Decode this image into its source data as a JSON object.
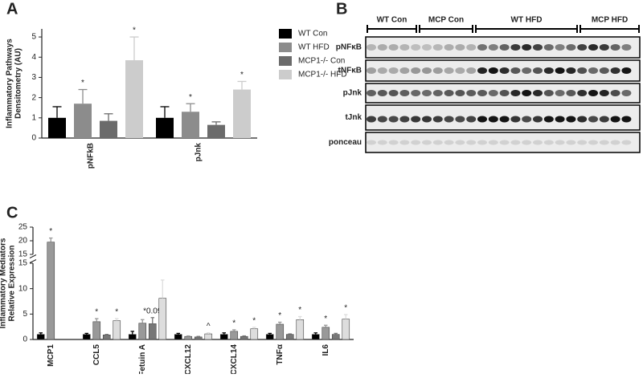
{
  "chart_data": [
    {
      "type": "bar",
      "panel": "A",
      "ylabel": [
        "Inflammatory Pathways",
        "Densitometry (AU)"
      ],
      "categories": [
        "pNFkB",
        "pJnk"
      ],
      "series": [
        {
          "name": "WT Con",
          "color": "#000000",
          "values": [
            1.0,
            1.0
          ],
          "errors": [
            0.55,
            0.55
          ]
        },
        {
          "name": "WT HFD",
          "color": "#8c8c8c",
          "values": [
            1.7,
            1.3
          ],
          "errors": [
            0.7,
            0.4
          ],
          "labels": [
            "*",
            "*"
          ]
        },
        {
          "name": "MCP1-/- Con",
          "color": "#6b6b6b",
          "values": [
            0.85,
            0.65
          ],
          "errors": [
            0.35,
            0.15
          ]
        },
        {
          "name": "MCP1-/- HFD",
          "color": "#cccccc",
          "values": [
            3.85,
            2.4
          ],
          "errors": [
            1.15,
            0.4
          ],
          "labels": [
            "*",
            "*"
          ]
        }
      ],
      "ylim": [
        0,
        5.4
      ],
      "yticks": [
        0,
        1,
        2,
        3,
        4,
        5
      ],
      "legend": "outside-right"
    },
    {
      "type": "bar",
      "panel": "C",
      "ylabel": [
        "Inflammatory Mediators",
        "Relative Expression"
      ],
      "categories": [
        "MCP1",
        "CCL5",
        "Fetuin A",
        "CXCL12",
        "CXCL14",
        "TNFα",
        "IL6"
      ],
      "series": [
        {
          "name": "WT Con",
          "color": "#000000",
          "values": [
            1.0,
            1.0,
            1.0,
            1.0,
            1.0,
            1.0,
            1.0
          ],
          "errors": [
            0.3,
            0.2,
            0.6,
            0.2,
            0.3,
            0.2,
            0.3
          ]
        },
        {
          "name": "WT HFD",
          "color": "#999999",
          "values": [
            19.5,
            3.5,
            3.2,
            0.6,
            1.6,
            3.0,
            2.4
          ],
          "errors": [
            1.5,
            0.6,
            0.7,
            0.1,
            0.3,
            0.4,
            0.4
          ],
          "labels": [
            "*",
            "*",
            null,
            null,
            "*",
            "*",
            "*"
          ]
        },
        {
          "name": "MCP1-/- Con",
          "color": "#777777",
          "values": [
            null,
            0.9,
            3.1,
            0.5,
            0.6,
            1.0,
            1.0
          ],
          "errors": [
            null,
            0.1,
            1.2,
            0.1,
            0.1,
            0.1,
            0.2
          ],
          "labels": [
            null,
            null,
            "*0.09",
            null,
            null,
            null,
            null
          ]
        },
        {
          "name": "MCP1-/- HFD",
          "color": "#dddddd",
          "values": [
            null,
            3.7,
            8.1,
            1.1,
            2.1,
            3.9,
            4.0
          ],
          "errors": [
            null,
            0.4,
            3.6,
            0.2,
            0.3,
            0.6,
            0.9
          ],
          "labels": [
            null,
            "*",
            null,
            "^",
            "*",
            "*",
            "*"
          ]
        }
      ],
      "segments": [
        {
          "ylim": [
            0,
            15
          ],
          "yticks": [
            0,
            5,
            10,
            15
          ]
        },
        {
          "ylim": [
            15,
            25
          ],
          "yticks": [
            15,
            20,
            25
          ]
        }
      ]
    }
  ],
  "blot": {
    "panel": "B",
    "groups": [
      "WT Con",
      "MCP Con",
      "WT HFD",
      "MCP HFD"
    ],
    "rows": [
      "pNFκB",
      "tNFκB",
      "pJnk",
      "tJnk",
      "ponceau"
    ]
  }
}
